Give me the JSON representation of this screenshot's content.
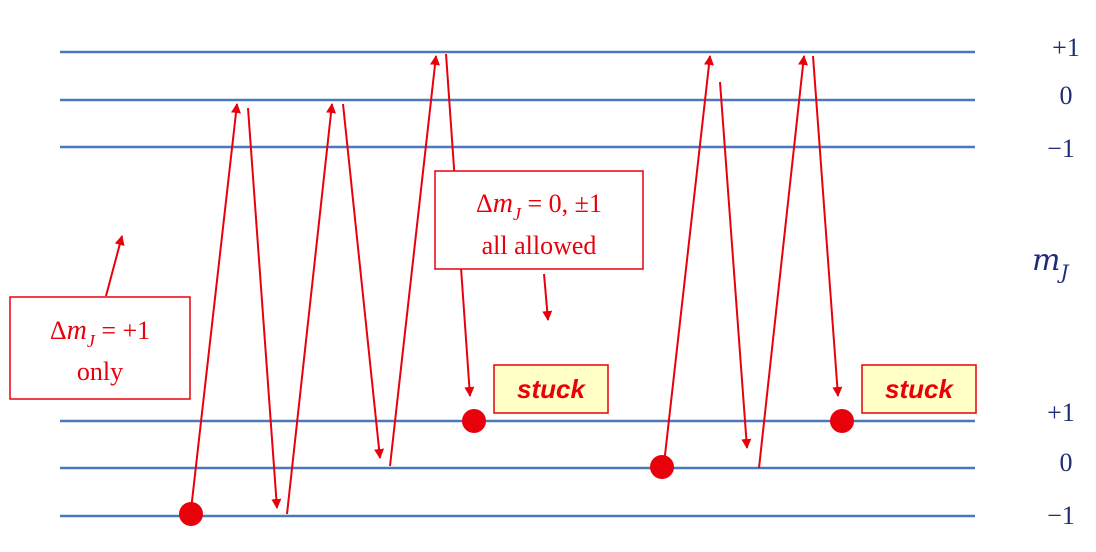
{
  "upper_levels": [
    "+1",
    "0",
    "−1"
  ],
  "lower_levels": [
    "+1",
    "0",
    "−1"
  ],
  "axis_label": {
    "base": "m",
    "sub": "J"
  },
  "box_left": {
    "delta": "Δ",
    "var": "m",
    "sub": "J",
    "rel": " = +1",
    "line2": "only"
  },
  "box_center": {
    "delta": "Δ",
    "var": "m",
    "sub": "J",
    "rel": " = 0, ±1",
    "line2": "all allowed"
  },
  "stuck_label": "stuck",
  "colors": {
    "levels": "#4a78b8",
    "arrows": "#e8000b",
    "stuck_bg": "#ffffc6",
    "text": "#1f2d78"
  }
}
